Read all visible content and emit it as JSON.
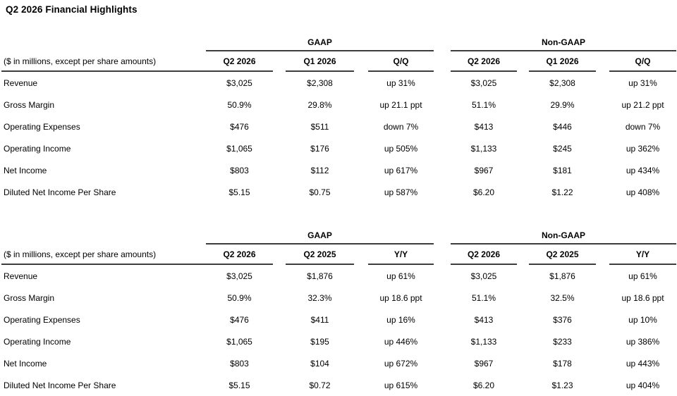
{
  "title": "Q2 2026 Financial Highlights",
  "colors": {
    "background": "#ffffff",
    "text": "#000000",
    "rule": "#3d3d3d"
  },
  "tables": [
    {
      "name": "quarter-over-quarter",
      "groups": [
        "GAAP",
        "Non-GAAP"
      ],
      "label_header": "($ in millions, except per share amounts)",
      "columns": [
        "Q2 2026",
        "Q1 2026",
        "Q/Q",
        "Q2 2026",
        "Q1 2026",
        "Q/Q"
      ],
      "rows": [
        {
          "label": "Revenue",
          "values": [
            "$3,025",
            "$2,308",
            "up 31%",
            "$3,025",
            "$2,308",
            "up 31%"
          ]
        },
        {
          "label": "Gross Margin",
          "values": [
            "50.9%",
            "29.8%",
            "up 21.1 ppt",
            "51.1%",
            "29.9%",
            "up 21.2 ppt"
          ]
        },
        {
          "label": "Operating Expenses",
          "values": [
            "$476",
            "$511",
            "down 7%",
            "$413",
            "$446",
            "down 7%"
          ]
        },
        {
          "label": "Operating Income",
          "values": [
            "$1,065",
            "$176",
            "up 505%",
            "$1,133",
            "$245",
            "up 362%"
          ]
        },
        {
          "label": "Net Income",
          "values": [
            "$803",
            "$112",
            "up 617%",
            "$967",
            "$181",
            "up 434%"
          ]
        },
        {
          "label": "Diluted Net Income Per Share",
          "values": [
            "$5.15",
            "$0.75",
            "up 587%",
            "$6.20",
            "$1.22",
            "up 408%"
          ]
        }
      ]
    },
    {
      "name": "year-over-year",
      "groups": [
        "GAAP",
        "Non-GAAP"
      ],
      "label_header": "($ in millions, except per share amounts)",
      "columns": [
        "Q2 2026",
        "Q2 2025",
        "Y/Y",
        "Q2 2026",
        "Q2 2025",
        "Y/Y"
      ],
      "rows": [
        {
          "label": "Revenue",
          "values": [
            "$3,025",
            "$1,876",
            "up 61%",
            "$3,025",
            "$1,876",
            "up 61%"
          ]
        },
        {
          "label": "Gross Margin",
          "values": [
            "50.9%",
            "32.3%",
            "up 18.6 ppt",
            "51.1%",
            "32.5%",
            "up 18.6 ppt"
          ]
        },
        {
          "label": "Operating Expenses",
          "values": [
            "$476",
            "$411",
            "up 16%",
            "$413",
            "$376",
            "up 10%"
          ]
        },
        {
          "label": "Operating Income",
          "values": [
            "$1,065",
            "$195",
            "up 446%",
            "$1,133",
            "$233",
            "up 386%"
          ]
        },
        {
          "label": "Net Income",
          "values": [
            "$803",
            "$104",
            "up 672%",
            "$967",
            "$178",
            "up 443%"
          ]
        },
        {
          "label": "Diluted Net Income Per Share",
          "values": [
            "$5.15",
            "$0.72",
            "up 615%",
            "$6.20",
            "$1.23",
            "up 404%"
          ]
        }
      ]
    }
  ]
}
